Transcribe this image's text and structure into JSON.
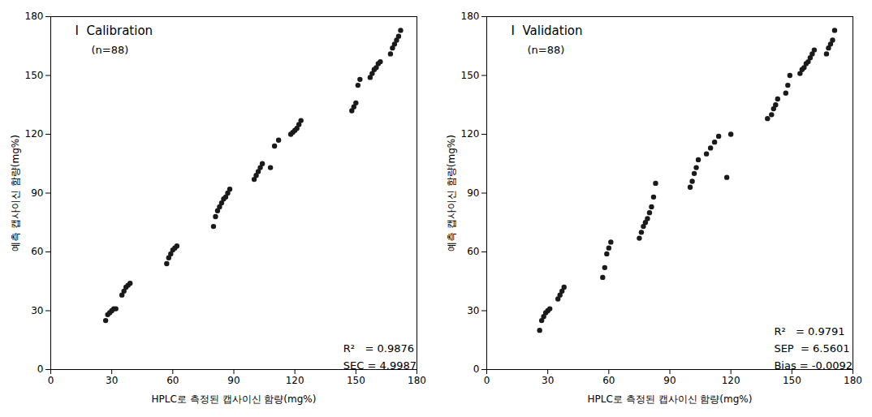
{
  "chart_data": [
    {
      "type": "scatter",
      "title": "I  Calibration",
      "subtitle": "(n=88)",
      "x_label": "HPLC로 측정된 캡사이신 함량(mg%)",
      "y_label": "예측 캡사이신 함량(mg%)",
      "annotations": [
        "R²   = 0.9876",
        "SEC = 4.9987"
      ],
      "xlim": [
        0,
        180
      ],
      "ylim": [
        0,
        180
      ],
      "xticks": [
        0,
        30,
        60,
        90,
        120,
        150,
        180
      ],
      "yticks": [
        0,
        30,
        60,
        90,
        120,
        150,
        180
      ],
      "grid": false,
      "color": "#1a1a1a",
      "x": [
        27,
        28,
        29,
        30,
        31,
        32,
        35,
        36,
        37,
        38,
        39,
        57,
        58,
        59,
        60,
        61,
        62,
        80,
        81,
        82,
        83,
        84,
        85,
        86,
        87,
        88,
        100,
        101,
        102,
        103,
        104,
        108,
        110,
        112,
        118,
        119,
        120,
        121,
        122,
        123,
        148,
        149,
        150,
        151,
        152,
        157,
        158,
        159,
        160,
        161,
        162,
        167,
        168,
        169,
        170,
        171,
        172
      ],
      "values": [
        25,
        28,
        29,
        30,
        31,
        31,
        38,
        40,
        42,
        43,
        44,
        54,
        57,
        59,
        61,
        62,
        63,
        73,
        78,
        81,
        83,
        85,
        87,
        88,
        90,
        92,
        97,
        99,
        101,
        103,
        105,
        103,
        114,
        117,
        120,
        121,
        122,
        123,
        125,
        127,
        132,
        134,
        136,
        145,
        148,
        149,
        151,
        153,
        154,
        156,
        157,
        161,
        164,
        166,
        168,
        170,
        173
      ]
    },
    {
      "type": "scatter",
      "title": "I  Validation",
      "subtitle": "(n=88)",
      "x_label": "HPLC로 측정된 캡사이신 함량(mg%)",
      "y_label": "예측 캡사이신 함량(mg%)",
      "annotations": [
        "R²   = 0.9791",
        "SEP  = 6.5601",
        "Bias = -0.0092"
      ],
      "xlim": [
        0,
        180
      ],
      "ylim": [
        0,
        180
      ],
      "xticks": [
        0,
        30,
        60,
        90,
        120,
        150,
        180
      ],
      "yticks": [
        0,
        30,
        60,
        90,
        120,
        150,
        180
      ],
      "grid": false,
      "color": "#1a1a1a",
      "x": [
        26,
        27,
        28,
        29,
        30,
        31,
        35,
        36,
        37,
        38,
        57,
        58,
        59,
        60,
        61,
        75,
        76,
        77,
        78,
        79,
        80,
        81,
        82,
        83,
        100,
        101,
        102,
        103,
        104,
        108,
        110,
        112,
        114,
        118,
        120,
        138,
        140,
        141,
        142,
        143,
        147,
        148,
        149,
        154,
        155,
        156,
        157,
        158,
        159,
        160,
        161,
        167,
        168,
        169,
        170,
        171
      ],
      "values": [
        20,
        25,
        27,
        29,
        30,
        31,
        36,
        38,
        40,
        42,
        47,
        52,
        59,
        62,
        65,
        67,
        70,
        73,
        75,
        77,
        80,
        83,
        88,
        95,
        93,
        96,
        100,
        103,
        107,
        110,
        113,
        116,
        119,
        98,
        120,
        128,
        130,
        133,
        135,
        138,
        141,
        145,
        150,
        151,
        153,
        154,
        156,
        157,
        159,
        161,
        163,
        161,
        164,
        166,
        168,
        173
      ]
    }
  ]
}
